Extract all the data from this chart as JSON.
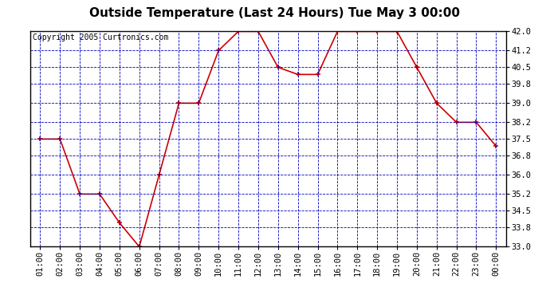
{
  "title": "Outside Temperature (Last 24 Hours) Tue May 3 00:00",
  "copyright": "Copyright 2005 Curtronics.com",
  "x_labels": [
    "01:00",
    "02:00",
    "03:00",
    "04:00",
    "05:00",
    "06:00",
    "07:00",
    "08:00",
    "09:00",
    "10:00",
    "11:00",
    "12:00",
    "13:00",
    "14:00",
    "15:00",
    "16:00",
    "17:00",
    "18:00",
    "19:00",
    "20:00",
    "21:00",
    "22:00",
    "23:00",
    "00:00"
  ],
  "y_values": [
    37.5,
    37.5,
    35.2,
    35.2,
    34.0,
    33.0,
    36.0,
    39.0,
    39.0,
    41.2,
    42.0,
    42.0,
    40.5,
    40.2,
    40.2,
    42.0,
    42.0,
    42.0,
    42.0,
    40.5,
    39.0,
    38.2,
    38.2,
    37.2
  ],
  "ylim_min": 33.0,
  "ylim_max": 42.0,
  "y_ticks": [
    33.0,
    33.8,
    34.5,
    35.2,
    36.0,
    36.8,
    37.5,
    38.2,
    39.0,
    39.8,
    40.5,
    41.2,
    42.0
  ],
  "line_color": "#cc0000",
  "marker_color": "#cc0000",
  "grid_color": "#0000bb",
  "plot_bg_color": "#ffffff",
  "outer_bg_color": "#ffffff",
  "title_fontsize": 11,
  "copyright_fontsize": 7,
  "tick_fontsize": 7.5
}
